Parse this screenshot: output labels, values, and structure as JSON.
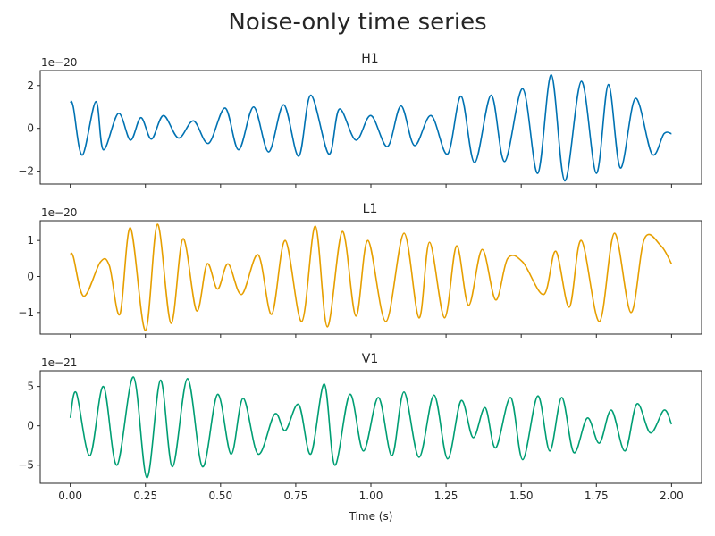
{
  "figure": {
    "title": "Noise-only time series",
    "xlabel": "Time (s)"
  },
  "chart_data": {
    "type": "line",
    "title": "Noise-only time series",
    "xlabel": "Time (s)",
    "xlim": [
      -0.1,
      2.1
    ],
    "xticks": [
      0.0,
      0.25,
      0.5,
      0.75,
      1.0,
      1.25,
      1.5,
      1.75,
      2.0
    ],
    "xtick_labels": [
      "0.00",
      "0.25",
      "0.50",
      "0.75",
      "1.00",
      "1.25",
      "1.50",
      "1.75",
      "2.00"
    ],
    "grid": false,
    "panels": [
      {
        "title": "H1",
        "color": "#0072b2",
        "offset_label": "1e−20",
        "ylim": [
          -2.6,
          2.7
        ],
        "yticks": [
          -2,
          0,
          2
        ],
        "ytick_labels": [
          "−2",
          "0",
          "2"
        ],
        "x": [
          0.0,
          0.01,
          0.04,
          0.085,
          0.11,
          0.16,
          0.2,
          0.235,
          0.27,
          0.31,
          0.36,
          0.41,
          0.46,
          0.515,
          0.56,
          0.61,
          0.66,
          0.71,
          0.76,
          0.8,
          0.86,
          0.895,
          0.95,
          1.0,
          1.055,
          1.1,
          1.145,
          1.2,
          1.255,
          1.3,
          1.345,
          1.4,
          1.445,
          1.505,
          1.555,
          1.6,
          1.645,
          1.7,
          1.75,
          1.79,
          1.83,
          1.88,
          1.935,
          1.975,
          2.0
        ],
        "y": [
          1.25,
          1.0,
          -1.25,
          1.25,
          -1.0,
          0.7,
          -0.55,
          0.5,
          -0.5,
          0.6,
          -0.45,
          0.35,
          -0.7,
          0.95,
          -1.0,
          1.0,
          -1.1,
          1.1,
          -1.3,
          1.55,
          -1.2,
          0.9,
          -0.55,
          0.6,
          -0.85,
          1.05,
          -0.8,
          0.6,
          -1.2,
          1.5,
          -1.6,
          1.55,
          -1.55,
          1.85,
          -2.1,
          2.5,
          -2.45,
          2.2,
          -2.1,
          2.05,
          -1.85,
          1.4,
          -1.2,
          -0.25,
          -0.25
        ]
      },
      {
        "title": "L1",
        "color": "#e69f00",
        "offset_label": "1e−20",
        "ylim": [
          -1.6,
          1.55
        ],
        "yticks": [
          -1,
          0,
          1
        ],
        "ytick_labels": [
          "−1",
          "0",
          "1"
        ],
        "x": [
          0.0,
          0.01,
          0.045,
          0.1,
          0.13,
          0.165,
          0.2,
          0.25,
          0.29,
          0.335,
          0.375,
          0.42,
          0.455,
          0.49,
          0.525,
          0.57,
          0.625,
          0.67,
          0.715,
          0.77,
          0.815,
          0.855,
          0.905,
          0.95,
          0.99,
          1.05,
          1.11,
          1.16,
          1.195,
          1.245,
          1.285,
          1.325,
          1.37,
          1.415,
          1.455,
          1.505,
          1.575,
          1.615,
          1.66,
          1.7,
          1.76,
          1.81,
          1.865,
          1.91,
          1.965,
          2.0
        ],
        "y": [
          0.6,
          0.55,
          -0.55,
          0.4,
          0.3,
          -1.05,
          1.35,
          -1.5,
          1.45,
          -1.3,
          1.05,
          -0.95,
          0.35,
          -0.35,
          0.35,
          -0.5,
          0.6,
          -1.05,
          1.0,
          -1.25,
          1.4,
          -1.4,
          1.25,
          -1.1,
          1.0,
          -1.25,
          1.2,
          -1.15,
          0.95,
          -1.15,
          0.85,
          -0.8,
          0.75,
          -0.65,
          0.5,
          0.4,
          -0.5,
          0.7,
          -0.85,
          1.0,
          -1.25,
          1.2,
          -1.0,
          1.05,
          0.85,
          0.35
        ]
      },
      {
        "title": "V1",
        "color": "#009e73",
        "offset_label": "1e−21",
        "ylim": [
          -7.3,
          7.0
        ],
        "yticks": [
          -5,
          0,
          5
        ],
        "ytick_labels": [
          "−5",
          "0",
          "5"
        ],
        "x": [
          0.0,
          0.02,
          0.065,
          0.11,
          0.155,
          0.21,
          0.255,
          0.3,
          0.34,
          0.39,
          0.44,
          0.49,
          0.535,
          0.575,
          0.625,
          0.68,
          0.715,
          0.76,
          0.8,
          0.845,
          0.88,
          0.93,
          0.975,
          1.025,
          1.07,
          1.11,
          1.16,
          1.21,
          1.255,
          1.3,
          1.34,
          1.38,
          1.415,
          1.465,
          1.505,
          1.555,
          1.595,
          1.635,
          1.675,
          1.72,
          1.76,
          1.8,
          1.845,
          1.885,
          1.93,
          1.975,
          2.0
        ],
        "y": [
          1.0,
          4.2,
          -3.8,
          5.0,
          -5.0,
          6.2,
          -6.6,
          5.8,
          -5.2,
          6.0,
          -5.2,
          4.0,
          -3.6,
          3.5,
          -3.6,
          1.5,
          -0.6,
          2.7,
          -3.6,
          5.3,
          -5.0,
          4.0,
          -3.2,
          3.6,
          -3.8,
          4.3,
          -4.0,
          3.9,
          -4.2,
          3.2,
          -1.5,
          2.3,
          -2.8,
          3.6,
          -4.3,
          3.8,
          -3.2,
          3.6,
          -3.4,
          1.0,
          -2.2,
          2.0,
          -3.2,
          2.8,
          -0.9,
          2.0,
          0.2
        ]
      }
    ]
  }
}
